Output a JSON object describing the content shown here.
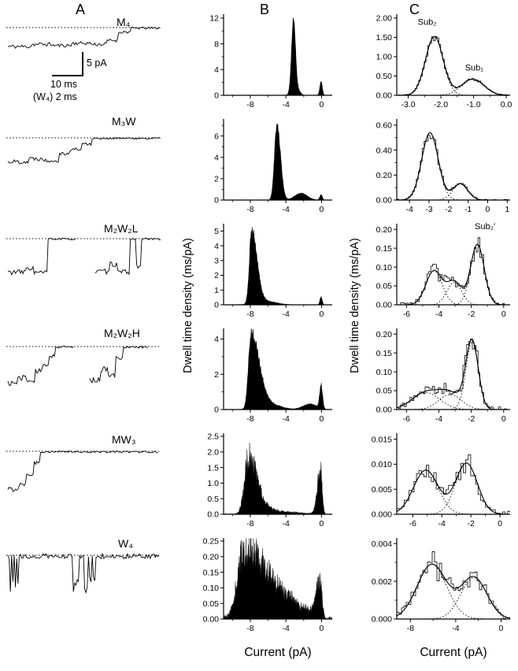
{
  "figure": {
    "panel_labels": {
      "a": "A",
      "b": "B",
      "c": "C"
    },
    "ylabel_b": "Dwell time density  (ms/pA)",
    "ylabel_c": "Dwell time density  (ms/pA)",
    "xlabel_b": "Current (pA)",
    "xlabel_c": "Current (pA)",
    "scalebar": {
      "v": "5 pA",
      "h": "10 ms",
      "note": "(W₄) 2 ms"
    }
  },
  "chart_data": [
    {
      "type": "trace",
      "panel": "A",
      "label": "M₄",
      "units": "pA vs ms",
      "seed": 11,
      "pa_scale": 5.6,
      "segments": [
        {
          "d": 0.16,
          "l": -4.3,
          "n": 0.45
        },
        {
          "d": 0.14,
          "l": -3.8,
          "n": 0.45
        },
        {
          "d": 0.12,
          "l": -4.05,
          "n": 0.4
        },
        {
          "d": 0.13,
          "l": -3.55,
          "n": 0.4
        },
        {
          "d": 0.1,
          "l": -3.8,
          "n": 0.4
        },
        {
          "d": 0.07,
          "l": -2.9,
          "n": 0.35
        },
        {
          "d": 0.08,
          "l": -1.0,
          "n": 0.35
        },
        {
          "d": 0.2,
          "l": -0.12,
          "n": 0.25
        }
      ]
    },
    {
      "type": "trace",
      "panel": "A",
      "label": "M₃W",
      "units": "pA vs ms",
      "seed": 22,
      "pa_scale": 5.6,
      "segments": [
        {
          "d": 0.14,
          "l": -5.4,
          "n": 0.5
        },
        {
          "d": 0.1,
          "l": -4.7,
          "n": 0.5
        },
        {
          "d": 0.1,
          "l": -5.1,
          "n": 0.45
        },
        {
          "d": 0.07,
          "l": -3.5,
          "n": 0.4
        },
        {
          "d": 0.07,
          "l": -2.6,
          "n": 0.4
        },
        {
          "d": 0.06,
          "l": -1.4,
          "n": 0.35
        },
        {
          "d": 0.46,
          "l": -0.12,
          "n": 0.22
        }
      ]
    },
    {
      "type": "trace",
      "panel": "A",
      "label": "M₂W₂L",
      "units": "pA vs ms",
      "seed": 33,
      "pa_scale": 5.6,
      "segments": [
        {
          "d": 0.12,
          "l": -7.6,
          "n": 0.6
        },
        {
          "d": 0.05,
          "l": -6.7,
          "n": 0.5
        },
        {
          "d": 0.09,
          "l": -7.7,
          "n": 0.55
        },
        {
          "d": 0.19,
          "l": -0.1,
          "n": 0.22
        },
        {
          "d": 0.12,
          "gap": true
        },
        {
          "d": 0.1,
          "l": -7.5,
          "n": 0.6
        },
        {
          "d": 0.05,
          "l": -5.8,
          "n": 0.55
        },
        {
          "d": 0.08,
          "l": -7.6,
          "n": 0.55
        },
        {
          "d": 0.04,
          "l": -0.15,
          "n": 0.3
        },
        {
          "d": 0.03,
          "l": -6.2,
          "n": 0.5
        },
        {
          "d": 0.13,
          "l": -0.1,
          "n": 0.22
        }
      ]
    },
    {
      "type": "trace",
      "panel": "A",
      "label": "M₂W₂H",
      "units": "pA vs ms",
      "seed": 44,
      "pa_scale": 5.6,
      "segments": [
        {
          "d": 0.06,
          "l": -8.3,
          "n": 0.65
        },
        {
          "d": 0.06,
          "l": -7.1,
          "n": 0.6
        },
        {
          "d": 0.05,
          "l": -7.9,
          "n": 0.6
        },
        {
          "d": 0.05,
          "l": -5.6,
          "n": 0.55
        },
        {
          "d": 0.04,
          "l": -4.1,
          "n": 0.5
        },
        {
          "d": 0.04,
          "l": -2.1,
          "n": 0.4
        },
        {
          "d": 0.12,
          "l": -0.12,
          "n": 0.25
        },
        {
          "d": 0.1,
          "gap": true
        },
        {
          "d": 0.07,
          "l": -7.6,
          "n": 0.7
        },
        {
          "d": 0.05,
          "l": -5.2,
          "n": 0.6
        },
        {
          "d": 0.05,
          "l": -6.6,
          "n": 0.55
        },
        {
          "d": 0.05,
          "l": -2.6,
          "n": 0.45
        },
        {
          "d": 0.16,
          "l": -0.12,
          "n": 0.25
        }
      ]
    },
    {
      "type": "trace",
      "panel": "A",
      "label": "MW₃",
      "units": "pA vs ms",
      "seed": 55,
      "pa_scale": 5.6,
      "segments": [
        {
          "d": 0.07,
          "l": -8.6,
          "n": 0.6
        },
        {
          "d": 0.05,
          "l": -7.3,
          "n": 0.55
        },
        {
          "d": 0.05,
          "l": -5.1,
          "n": 0.5
        },
        {
          "d": 0.04,
          "l": -2.6,
          "n": 0.45
        },
        {
          "d": 0.79,
          "l": -0.12,
          "n": 0.22
        }
      ]
    },
    {
      "type": "trace",
      "panel": "A",
      "label": "W₄",
      "units": "pA vs ms",
      "seed": 66,
      "pa_scale": 5.6,
      "segments": [
        {
          "d": 0.07,
          "burst": true
        },
        {
          "d": 0.36,
          "l": -0.25,
          "n": 0.55
        },
        {
          "d": 0.16,
          "burst": true
        },
        {
          "d": 0.41,
          "l": -0.25,
          "n": 0.55
        }
      ]
    },
    {
      "type": "histogram",
      "style": "fill",
      "panel": "B",
      "row": "M₄",
      "ml": 38,
      "seed": 101,
      "samples": 330,
      "xlim": [
        -11,
        1.2
      ],
      "ylim": [
        0,
        12.6
      ],
      "xticks": [
        -8,
        -4,
        0
      ],
      "xtlabels": [
        "-8",
        "-4",
        "0"
      ],
      "xminor": [
        -10,
        -6,
        -2
      ],
      "yticks": [
        0,
        4,
        8,
        12
      ],
      "ytlabels": [
        "0",
        "4",
        "8",
        "12"
      ],
      "yminor": [
        2,
        6,
        10
      ],
      "peaks": [
        {
          "c": -3.15,
          "h": 11.5,
          "w": 0.22
        },
        {
          "c": -2.7,
          "h": 0.9,
          "wl": 0.5,
          "wr": 0.3
        },
        {
          "c": -0.05,
          "h": 2.2,
          "w": 0.14
        }
      ],
      "noise": 0.06,
      "anoise": 0.02
    },
    {
      "type": "histogram",
      "style": "fill",
      "panel": "B",
      "row": "M₃W",
      "ml": 38,
      "seed": 102,
      "samples": 330,
      "xlim": [
        -11,
        1.2
      ],
      "ylim": [
        0,
        7.6
      ],
      "xticks": [
        -8,
        -4,
        0
      ],
      "xtlabels": [
        "-8",
        "-4",
        "0"
      ],
      "xminor": [
        -10,
        -6,
        -2
      ],
      "yticks": [
        0,
        2,
        4,
        6
      ],
      "ytlabels": [
        "0",
        "2",
        "4",
        "6"
      ],
      "yminor": [
        1,
        3,
        5,
        7
      ],
      "peaks": [
        {
          "c": -5.0,
          "h": 7.0,
          "wl": 0.28,
          "wr": 0.4
        },
        {
          "c": -2.3,
          "h": 0.65,
          "w": 0.7
        },
        {
          "c": -0.05,
          "h": 0.5,
          "w": 0.15
        }
      ],
      "noise": 0.06,
      "anoise": 0.015
    },
    {
      "type": "histogram",
      "style": "fill",
      "panel": "B",
      "row": "M₂W₂L",
      "ml": 38,
      "seed": 103,
      "samples": 330,
      "xlim": [
        -11,
        1.2
      ],
      "ylim": [
        0,
        5.5
      ],
      "xticks": [
        -8,
        -4,
        0
      ],
      "xtlabels": [
        "-8",
        "-4",
        "0"
      ],
      "xminor": [
        -10,
        -6,
        -2
      ],
      "yticks": [
        0,
        1,
        2,
        3,
        4,
        5
      ],
      "ytlabels": [
        "0",
        "1",
        "2",
        "3",
        "4",
        "5"
      ],
      "peaks": [
        {
          "c": -7.85,
          "h": 5.0,
          "wl": 0.25,
          "wr": 0.6
        },
        {
          "c": -6.3,
          "h": 0.25,
          "w": 1.2
        },
        {
          "c": -0.05,
          "h": 0.55,
          "w": 0.13
        }
      ],
      "noise": 0.07,
      "anoise": 0.012
    },
    {
      "type": "histogram",
      "style": "fill",
      "panel": "B",
      "row": "M₂W₂H",
      "ml": 38,
      "seed": 104,
      "samples": 330,
      "xlim": [
        -11,
        1.2
      ],
      "ylim": [
        0,
        4.6
      ],
      "xticks": [
        -8,
        -4,
        0
      ],
      "xtlabels": [
        "-8",
        "-4",
        "0"
      ],
      "xminor": [
        -10,
        -6,
        -2
      ],
      "yticks": [
        0,
        2,
        4
      ],
      "ytlabels": [
        "0",
        "2",
        "4"
      ],
      "yminor": [
        1,
        3
      ],
      "peaks": [
        {
          "c": -7.9,
          "h": 4.3,
          "wl": 0.3,
          "wr": 0.9
        },
        {
          "c": -5.8,
          "h": 0.3,
          "w": 1.2
        },
        {
          "c": -1.3,
          "h": 0.32,
          "w": 0.8
        },
        {
          "c": -0.05,
          "h": 1.35,
          "w": 0.16
        }
      ],
      "noise": 0.08,
      "anoise": 0.015
    },
    {
      "type": "histogram",
      "style": "fill",
      "panel": "B",
      "row": "MW₃",
      "ml": 38,
      "seed": 105,
      "samples": 330,
      "xlim": [
        -11,
        1.2
      ],
      "ylim": [
        0,
        2.6
      ],
      "xticks": [
        -8,
        -4,
        0
      ],
      "xtlabels": [
        "-8",
        "-4",
        "0"
      ],
      "xminor": [
        -10,
        -6,
        -2
      ],
      "yticks": [
        0,
        0.5,
        1,
        1.5,
        2,
        2.5
      ],
      "ytlabels": [
        "0.0",
        "0.5",
        "1.0",
        "1.5",
        "2.0",
        "2.5"
      ],
      "peaks": [
        {
          "c": -8.2,
          "h": 1.75,
          "wl": 0.45,
          "wr": 0.9
        },
        {
          "c": -6.5,
          "h": 0.2,
          "w": 1.2
        },
        {
          "c": -3.5,
          "h": 0.06,
          "w": 1.5
        },
        {
          "c": -0.1,
          "h": 1.45,
          "wl": 0.35,
          "wr": 0.18
        }
      ],
      "noise": 0.28,
      "anoise": 0.02
    },
    {
      "type": "histogram",
      "style": "fill",
      "panel": "B",
      "row": "W₄",
      "ml": 38,
      "seed": 106,
      "samples": 360,
      "xlim": [
        -11,
        1.2
      ],
      "ylim": [
        0,
        0.26
      ],
      "xticks": [
        -8,
        -4,
        0
      ],
      "xtlabels": [
        "-8",
        "-4",
        "0"
      ],
      "xminor": [
        -10,
        -6,
        -2
      ],
      "yticks": [
        0,
        0.05,
        0.1,
        0.15,
        0.2,
        0.25
      ],
      "ytlabels": [
        "0.00",
        "0.05",
        "0.10",
        "0.15",
        "0.20",
        "0.25"
      ],
      "peaks": [
        {
          "c": -8.7,
          "h": 0.2,
          "wl": 0.75,
          "wr": 1.9
        },
        {
          "c": -5.8,
          "h": 0.07,
          "w": 1.8
        },
        {
          "c": -3.0,
          "h": 0.035,
          "w": 1.6
        },
        {
          "c": -0.15,
          "h": 0.12,
          "wl": 0.45,
          "wr": 0.2
        }
      ],
      "noise": 0.3,
      "anoise": 0.008
    },
    {
      "type": "histogram",
      "style": "fit",
      "panel": "C",
      "row": "M₄",
      "ml": 46,
      "seed": 201,
      "bins": 62,
      "xlim": [
        -3.35,
        0.12
      ],
      "ylim": [
        0,
        2.1
      ],
      "xticks": [
        -3,
        -2,
        -1,
        0
      ],
      "xtlabels": [
        "-3.0",
        "-2.0",
        "-1.0",
        "0.0"
      ],
      "xminor": [
        -2.5,
        -1.5,
        -0.5
      ],
      "yticks": [
        0,
        0.5,
        1,
        1.5,
        2
      ],
      "ytlabels": [
        "0.00",
        "0.50",
        "1.00",
        "1.50",
        "2.00"
      ],
      "peaks": [
        {
          "c": -2.2,
          "h": 1.52,
          "w": 0.27
        },
        {
          "c": -1.02,
          "h": 0.42,
          "w": 0.34
        }
      ],
      "annotations": [
        {
          "x": -2.42,
          "y": 1.82,
          "label": "Sub₂"
        },
        {
          "x": -0.98,
          "y": 0.64,
          "label": "Sub₁"
        }
      ],
      "noise": 0.07,
      "anoise": 0.01
    },
    {
      "type": "histogram",
      "style": "fit",
      "panel": "C",
      "row": "M₃W",
      "ml": 46,
      "seed": 202,
      "bins": 58,
      "xlim": [
        -4.65,
        1.15
      ],
      "ylim": [
        0,
        0.65
      ],
      "xticks": [
        -4,
        -3,
        -2,
        -1,
        0,
        1
      ],
      "xtlabels": [
        "-4",
        "-3",
        "-2",
        "-1",
        "0",
        "1"
      ],
      "yticks": [
        0,
        0.2,
        0.4,
        0.6
      ],
      "ytlabels": [
        "0.00",
        "0.20",
        "0.40",
        "0.60"
      ],
      "yminor": [
        0.1,
        0.3,
        0.5
      ],
      "peaks": [
        {
          "c": -2.95,
          "h": 0.54,
          "w": 0.42
        },
        {
          "c": -1.4,
          "h": 0.13,
          "w": 0.38
        }
      ],
      "noise": 0.1,
      "anoise": 0.006
    },
    {
      "type": "histogram",
      "style": "fit",
      "panel": "C",
      "row": "M₂W₂L",
      "ml": 46,
      "seed": 203,
      "bins": 60,
      "xlim": [
        -6.6,
        0.4
      ],
      "ylim": [
        0,
        0.215
      ],
      "xticks": [
        -6,
        -4,
        -2,
        0
      ],
      "xtlabels": [
        "-6",
        "-4",
        "-2",
        "0"
      ],
      "xminor": [
        -5,
        -3,
        -1
      ],
      "yticks": [
        0,
        0.05,
        0.1,
        0.15,
        0.2
      ],
      "ytlabels": [
        "0.00",
        "0.05",
        "0.10",
        "0.15",
        "0.20"
      ],
      "peaks": [
        {
          "c": -4.3,
          "h": 0.09,
          "w": 0.5
        },
        {
          "c": -3.05,
          "h": 0.06,
          "w": 0.45
        },
        {
          "c": -1.62,
          "h": 0.16,
          "w": 0.42
        }
      ],
      "annotations": [
        {
          "x": -1.15,
          "y": 0.2,
          "label": "Sub₂′"
        }
      ],
      "noise": 0.18,
      "anoise": 0.006
    },
    {
      "type": "histogram",
      "style": "fit",
      "panel": "C",
      "row": "M₂W₂H",
      "ml": 46,
      "seed": 204,
      "bins": 60,
      "xlim": [
        -6.6,
        0.4
      ],
      "ylim": [
        0,
        0.215
      ],
      "xticks": [
        -6,
        -4,
        -2,
        0
      ],
      "xtlabels": [
        "-6",
        "-4",
        "-2",
        "0"
      ],
      "xminor": [
        -5,
        -3,
        -1
      ],
      "yticks": [
        0,
        0.05,
        0.1,
        0.15,
        0.2
      ],
      "ytlabels": [
        "0.00",
        "0.05",
        "0.10",
        "0.15",
        "0.20"
      ],
      "peaks": [
        {
          "c": -4.8,
          "h": 0.045,
          "w": 0.85
        },
        {
          "c": -3.3,
          "h": 0.04,
          "w": 0.7
        },
        {
          "c": -1.95,
          "h": 0.18,
          "w": 0.38
        }
      ],
      "noise": 0.22,
      "anoise": 0.007
    },
    {
      "type": "histogram",
      "style": "fit",
      "panel": "C",
      "row": "MW₃",
      "ml": 46,
      "seed": 205,
      "bins": 46,
      "xlim": [
        -7.1,
        0.7
      ],
      "ylim": [
        0,
        0.0162
      ],
      "xticks": [
        -6,
        -4,
        -2,
        0
      ],
      "xtlabels": [
        "-6",
        "-4",
        "-2",
        "0"
      ],
      "xminor": [
        -5,
        -3,
        -1
      ],
      "yticks": [
        0,
        0.005,
        0.01,
        0.015
      ],
      "ytlabels": [
        "0.000",
        "0.005",
        "0.010",
        "0.015"
      ],
      "peaks": [
        {
          "c": -5.1,
          "h": 0.0088,
          "w": 0.85
        },
        {
          "c": -2.3,
          "h": 0.0102,
          "w": 0.75
        }
      ],
      "noise": 0.2,
      "anoise": 0.0006
    },
    {
      "type": "histogram",
      "style": "fit",
      "panel": "C",
      "row": "W₄",
      "ml": 46,
      "seed": 206,
      "bins": 48,
      "xlim": [
        -9.2,
        0.8
      ],
      "ylim": [
        0,
        0.0043
      ],
      "xticks": [
        -8,
        -4,
        0
      ],
      "xtlabels": [
        "-8",
        "-4",
        "0"
      ],
      "xminor": [
        -6,
        -2
      ],
      "yticks": [
        0,
        0.002,
        0.004
      ],
      "ytlabels": [
        "0.000",
        "0.002",
        "0.004"
      ],
      "yminor": [
        0.001,
        0.003
      ],
      "peaks": [
        {
          "c": -6.1,
          "h": 0.0029,
          "w": 1.3
        },
        {
          "c": -2.4,
          "h": 0.0022,
          "w": 1.15
        }
      ],
      "noise": 0.22,
      "anoise": 0.00018
    }
  ]
}
